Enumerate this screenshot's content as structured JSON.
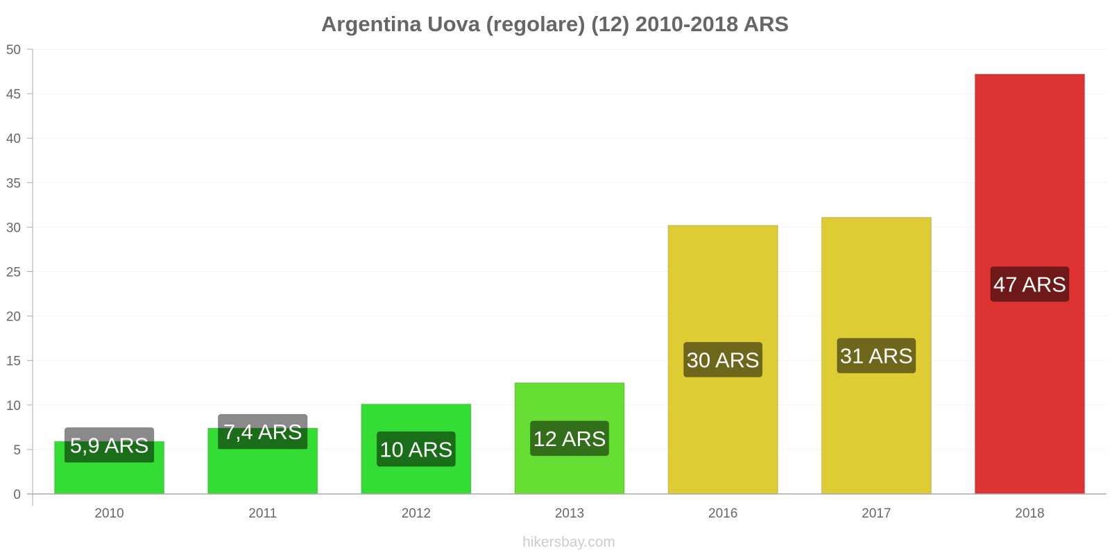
{
  "chart_data": {
    "type": "bar",
    "title": "Argentina Uova (regolare) (12) 2010-2018 ARS",
    "xlabel": "",
    "ylabel": "",
    "ylim": [
      0,
      50
    ],
    "yticks": [
      0,
      5,
      10,
      15,
      20,
      25,
      30,
      35,
      40,
      45,
      50
    ],
    "grid": true,
    "categories": [
      "2010",
      "2011",
      "2012",
      "2013",
      "2016",
      "2017",
      "2018"
    ],
    "values": [
      5.9,
      7.4,
      10.1,
      12.5,
      30.2,
      31.1,
      47.2
    ],
    "data_labels": [
      "5,9 ARS",
      "7,4 ARS",
      "10 ARS",
      "12 ARS",
      "30 ARS",
      "31 ARS",
      "47 ARS"
    ],
    "bar_colors": [
      "#33dd33",
      "#33dd33",
      "#33dd33",
      "#66dd33",
      "#ddcc33",
      "#ddcc33",
      "#dd3333"
    ],
    "label_box_colors": [
      "#1a6e1a",
      "#1a6e1a",
      "#1a6e1a",
      "#336e1a",
      "#6e661a",
      "#6e661a",
      "#6e1a1a"
    ]
  },
  "watermark": "hikersbay.com"
}
